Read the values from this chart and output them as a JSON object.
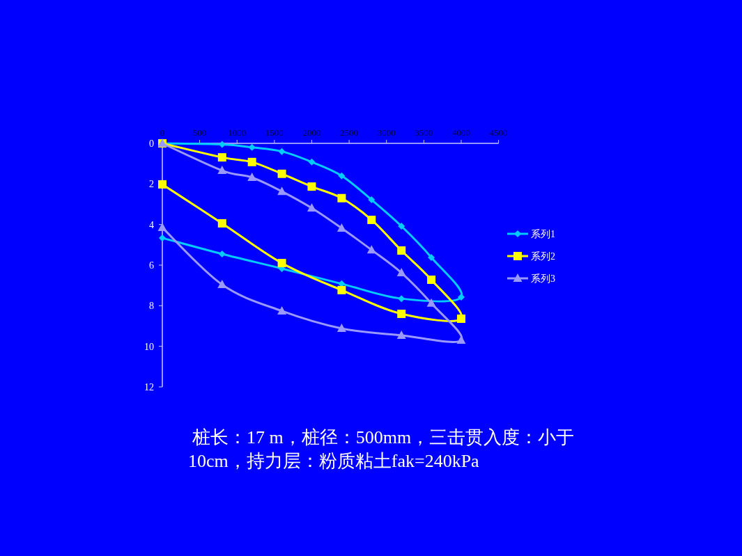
{
  "chart_data": {
    "type": "line",
    "xlim": [
      0,
      4500
    ],
    "xticks": [
      0,
      500,
      1000,
      1500,
      2000,
      2500,
      3000,
      3500,
      4000,
      4500
    ],
    "ylim": [
      12,
      0
    ],
    "yticks": [
      0,
      2,
      4,
      6,
      8,
      10,
      12
    ],
    "grid": false,
    "legend": "right",
    "annotations": [
      "桩长：17 m，桩径：500mm，三击贯入度：小于10cm，持力层：粉质粘土fak=240kPa"
    ],
    "series": [
      {
        "name": "系列1",
        "color": "#00ccff",
        "marker": "diamond",
        "x": [
          0,
          800,
          1200,
          1600,
          2000,
          2400,
          2800,
          3200,
          3600,
          4000,
          3200,
          2400,
          1600,
          800,
          0
        ],
        "values": [
          0,
          0.05,
          0.2,
          0.4,
          0.92,
          1.6,
          2.78,
          4.08,
          5.62,
          7.58,
          7.65,
          6.92,
          6.17,
          5.45,
          4.66
        ]
      },
      {
        "name": "系列2",
        "color": "#ffff00",
        "marker": "square",
        "x": [
          0,
          800,
          1200,
          1600,
          2000,
          2400,
          2800,
          3200,
          3600,
          4000,
          3200,
          2400,
          1600,
          800,
          0
        ],
        "values": [
          0,
          0.69,
          0.92,
          1.5,
          2.13,
          2.7,
          3.77,
          5.28,
          6.72,
          8.64,
          8.4,
          7.23,
          5.9,
          3.94,
          2.02
        ]
      },
      {
        "name": "系列3",
        "color": "#9999ff",
        "marker": "triangle",
        "x": [
          0,
          800,
          1200,
          1600,
          2000,
          2400,
          2800,
          3200,
          3600,
          4000,
          3200,
          2400,
          1600,
          800,
          0
        ],
        "values": [
          0,
          1.34,
          1.68,
          2.37,
          3.19,
          4.18,
          5.25,
          6.38,
          7.88,
          9.7,
          9.46,
          9.12,
          8.26,
          6.96,
          4.15
        ]
      }
    ]
  }
}
